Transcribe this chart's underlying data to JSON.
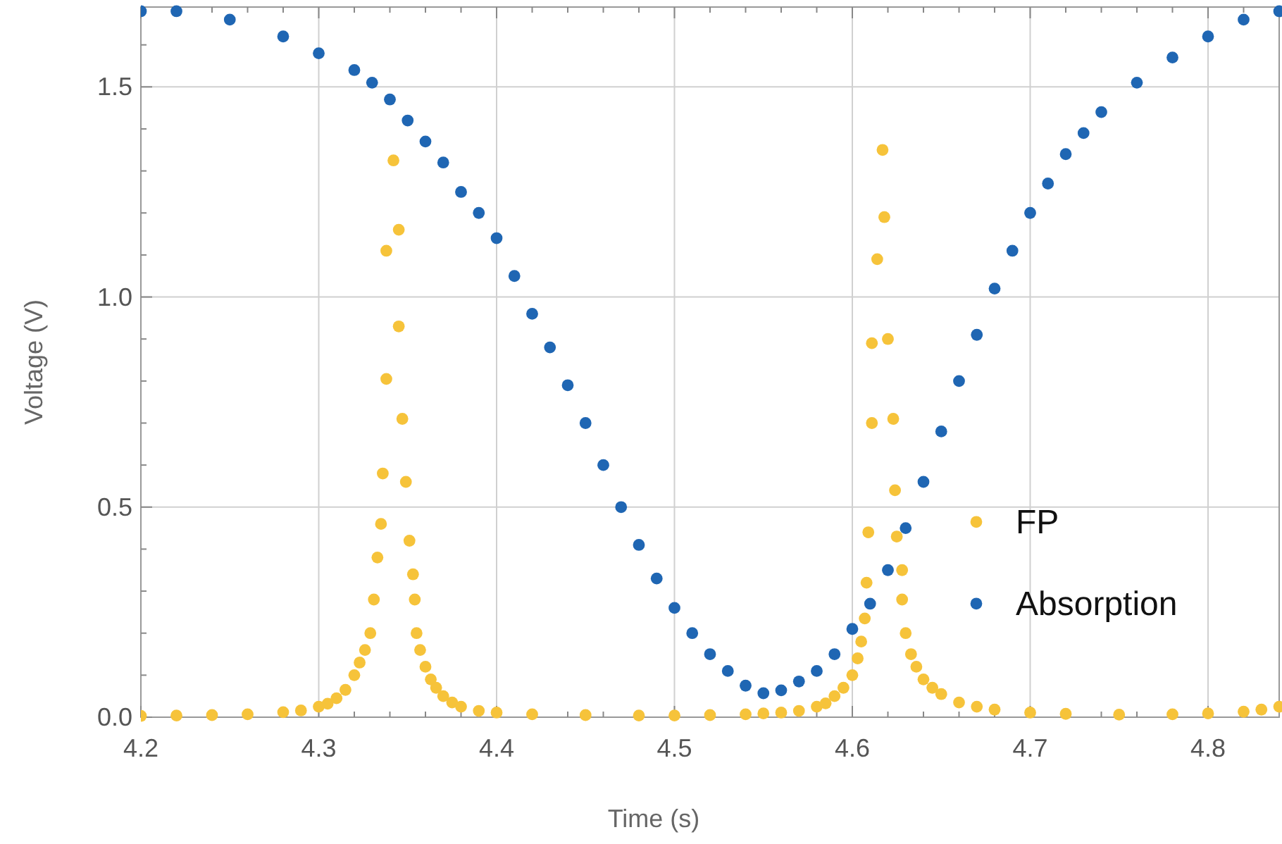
{
  "chart_data": {
    "type": "scatter",
    "xlabel": "Time (s)",
    "ylabel": "Voltage (V)",
    "xlim": [
      4.2,
      4.84
    ],
    "ylim": [
      0,
      1.69
    ],
    "xticks": [
      4.2,
      {
        "value": 4.22,
        "label": null
      },
      {
        "value": 4.24,
        "label": null
      },
      {
        "value": 4.26,
        "label": null
      },
      {
        "value": 4.28,
        "label": null
      },
      4.3,
      {
        "value": 4.32,
        "label": null
      },
      {
        "value": 4.34,
        "label": null
      },
      {
        "value": 4.36,
        "label": null
      },
      {
        "value": 4.38,
        "label": null
      },
      4.4,
      {
        "value": 4.42,
        "label": null
      },
      {
        "value": 4.44,
        "label": null
      },
      {
        "value": 4.46,
        "label": null
      },
      {
        "value": 4.48,
        "label": null
      },
      4.5,
      {
        "value": 4.52,
        "label": null
      },
      {
        "value": 4.54,
        "label": null
      },
      {
        "value": 4.56,
        "label": null
      },
      {
        "value": 4.58,
        "label": null
      },
      4.6,
      {
        "value": 4.62,
        "label": null
      },
      {
        "value": 4.64,
        "label": null
      },
      {
        "value": 4.66,
        "label": null
      },
      {
        "value": 4.68,
        "label": null
      },
      4.7,
      {
        "value": 4.72,
        "label": null
      },
      {
        "value": 4.74,
        "label": null
      },
      {
        "value": 4.76,
        "label": null
      },
      {
        "value": 4.78,
        "label": null
      },
      4.8,
      {
        "value": 4.82,
        "label": null
      }
    ],
    "yticks": [
      {
        "value": 0,
        "label": "0.0"
      },
      {
        "value": 0.1,
        "label": null
      },
      {
        "value": 0.2,
        "label": null
      },
      {
        "value": 0.3,
        "label": null
      },
      {
        "value": 0.4,
        "label": null
      },
      0.5,
      {
        "value": 0.6,
        "label": null
      },
      {
        "value": 0.7,
        "label": null
      },
      {
        "value": 0.8,
        "label": null
      },
      {
        "value": 0.9,
        "label": null
      },
      {
        "value": 1,
        "label": "1.0"
      },
      {
        "value": 1.1,
        "label": null
      },
      {
        "value": 1.2,
        "label": null
      },
      {
        "value": 1.3,
        "label": null
      },
      {
        "value": 1.4,
        "label": null
      },
      1.5,
      {
        "value": 1.6,
        "label": null
      }
    ],
    "grid": true,
    "legend": "right",
    "marker": "circle",
    "series": [
      {
        "name": "FP",
        "color": "#f6c33a",
        "x": [
          4.2,
          4.22,
          4.24,
          4.26,
          4.28,
          4.29,
          4.3,
          4.305,
          4.31,
          4.315,
          4.32,
          4.323,
          4.326,
          4.329,
          4.331,
          4.333,
          4.335,
          4.336,
          4.338,
          4.338,
          4.342,
          4.345,
          4.345,
          4.347,
          4.349,
          4.351,
          4.353,
          4.354,
          4.355,
          4.357,
          4.36,
          4.363,
          4.366,
          4.37,
          4.375,
          4.38,
          4.39,
          4.4,
          4.42,
          4.45,
          4.48,
          4.5,
          4.52,
          4.54,
          4.55,
          4.56,
          4.57,
          4.58,
          4.585,
          4.59,
          4.595,
          4.6,
          4.603,
          4.605,
          4.607,
          4.608,
          4.609,
          4.611,
          4.611,
          4.614,
          4.617,
          4.618,
          4.62,
          4.623,
          4.624,
          4.625,
          4.628,
          4.628,
          4.63,
          4.633,
          4.636,
          4.64,
          4.645,
          4.65,
          4.66,
          4.67,
          4.68,
          4.7,
          4.72,
          4.75,
          4.78,
          4.8,
          4.82,
          4.83,
          4.84
        ],
        "values": [
          0.003,
          0.004,
          0.005,
          0.007,
          0.012,
          0.016,
          0.025,
          0.032,
          0.045,
          0.065,
          0.1,
          0.13,
          0.16,
          0.2,
          0.28,
          0.38,
          0.46,
          0.58,
          0.805,
          1.11,
          1.325,
          1.16,
          0.93,
          0.71,
          0.56,
          0.42,
          0.34,
          0.28,
          0.2,
          0.16,
          0.12,
          0.09,
          0.07,
          0.05,
          0.035,
          0.025,
          0.015,
          0.011,
          0.007,
          0.005,
          0.004,
          0.004,
          0.005,
          0.007,
          0.009,
          0.011,
          0.015,
          0.025,
          0.033,
          0.05,
          0.07,
          0.1,
          0.14,
          0.18,
          0.235,
          0.32,
          0.44,
          0.7,
          0.89,
          1.09,
          1.35,
          1.19,
          0.9,
          0.71,
          0.54,
          0.43,
          0.35,
          0.28,
          0.2,
          0.15,
          0.12,
          0.09,
          0.07,
          0.055,
          0.035,
          0.025,
          0.018,
          0.011,
          0.008,
          0.006,
          0.007,
          0.009,
          0.013,
          0.018,
          0.025
        ]
      },
      {
        "name": "Absorption",
        "color": "#1f66b3",
        "x": [
          4.2,
          4.22,
          4.25,
          4.28,
          4.3,
          4.32,
          4.33,
          4.34,
          4.35,
          4.36,
          4.37,
          4.38,
          4.39,
          4.4,
          4.41,
          4.42,
          4.43,
          4.44,
          4.45,
          4.46,
          4.47,
          4.48,
          4.49,
          4.5,
          4.51,
          4.52,
          4.53,
          4.54,
          4.55,
          4.56,
          4.57,
          4.58,
          4.59,
          4.6,
          4.61,
          4.62,
          4.63,
          4.64,
          4.65,
          4.66,
          4.67,
          4.68,
          4.69,
          4.7,
          4.71,
          4.72,
          4.73,
          4.74,
          4.76,
          4.78,
          4.8,
          4.82,
          4.84
        ],
        "values": [
          1.68,
          1.68,
          1.66,
          1.62,
          1.58,
          1.54,
          1.51,
          1.47,
          1.42,
          1.37,
          1.32,
          1.25,
          1.2,
          1.14,
          1.05,
          0.96,
          0.88,
          0.79,
          0.7,
          0.6,
          0.5,
          0.41,
          0.33,
          0.26,
          0.2,
          0.15,
          0.11,
          0.075,
          0.057,
          0.064,
          0.085,
          0.11,
          0.15,
          0.21,
          0.27,
          0.35,
          0.45,
          0.56,
          0.68,
          0.8,
          0.91,
          1.02,
          1.11,
          1.2,
          1.27,
          1.34,
          1.39,
          1.44,
          1.51,
          1.57,
          1.62,
          1.66,
          1.68
        ]
      }
    ]
  }
}
